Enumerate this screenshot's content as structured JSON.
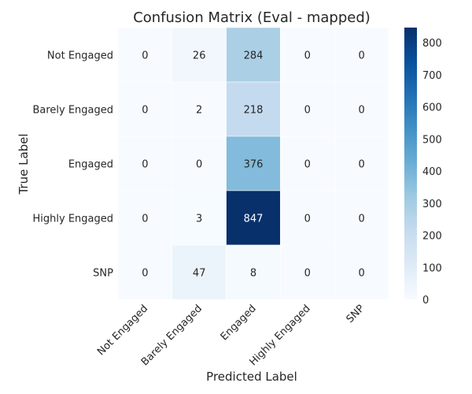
{
  "chart_data": {
    "type": "heatmap",
    "title": "Confusion Matrix (Eval - mapped)",
    "xlabel": "Predicted Label",
    "ylabel": "True Label",
    "x_categories": [
      "Not Engaged",
      "Barely Engaged",
      "Engaged",
      "Highly Engaged",
      "SNP"
    ],
    "y_categories": [
      "Not Engaged",
      "Barely Engaged",
      "Engaged",
      "Highly Engaged",
      "SNP"
    ],
    "values": [
      [
        0,
        26,
        284,
        0,
        0
      ],
      [
        0,
        2,
        218,
        0,
        0
      ],
      [
        0,
        0,
        376,
        0,
        0
      ],
      [
        0,
        3,
        847,
        0,
        0
      ],
      [
        0,
        47,
        8,
        0,
        0
      ]
    ],
    "colormap": "Blues",
    "vmin": 0,
    "vmax": 847,
    "colorbar_ticks": [
      0,
      100,
      200,
      300,
      400,
      500,
      600,
      700,
      800
    ],
    "text_color_dark": "#262626",
    "text_color_light": "#ffffff"
  }
}
